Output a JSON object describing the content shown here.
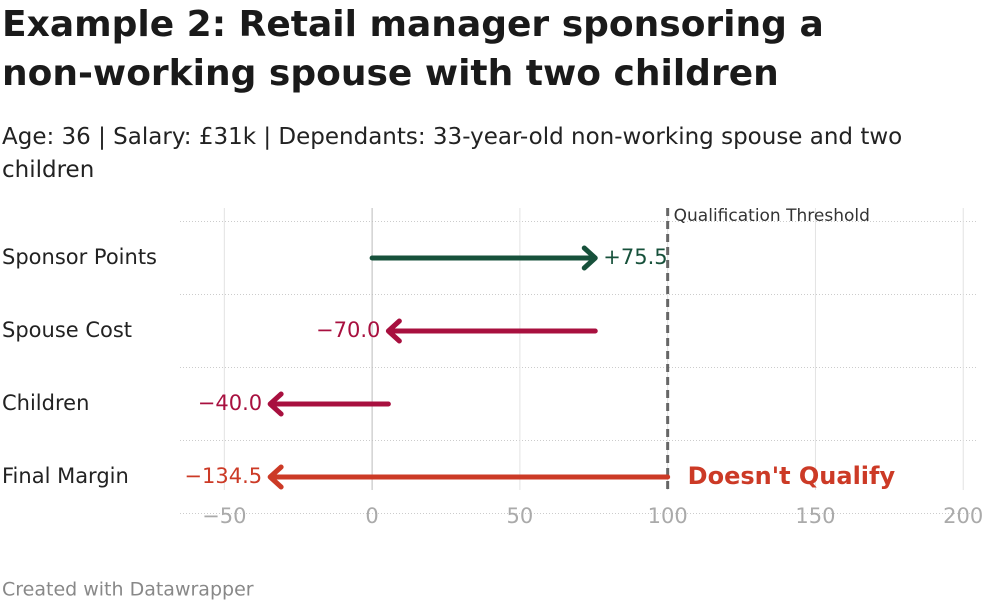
{
  "chart_data": {
    "type": "arrow",
    "title": "Example 2: Retail manager sponsoring a non-working spouse with two children",
    "subtitle": "Age: 36 | Salary: £31k | Dependants: 33-year-old non-working spouse and two children",
    "categories": [
      "Sponsor Points",
      "Spouse Cost",
      "Children",
      "Final Margin"
    ],
    "values": [
      75.5,
      -70.0,
      -40.0,
      -134.5
    ],
    "value_labels": [
      "+75.5",
      "−70.0",
      "−40.0",
      "−134.5"
    ],
    "colors": [
      "#17513b",
      "#a8103f",
      "#a8103f",
      "#cc3a26"
    ],
    "threshold": 100,
    "threshold_label": "Qualification Threshold",
    "annotation": "Doesn't Qualify",
    "xlim": [
      -65,
      205
    ],
    "xticks": [
      {
        "value": -50,
        "label": "−50"
      },
      0,
      50,
      100,
      150,
      200
    ],
    "grid": true,
    "footer": "Created with Datawrapper"
  }
}
